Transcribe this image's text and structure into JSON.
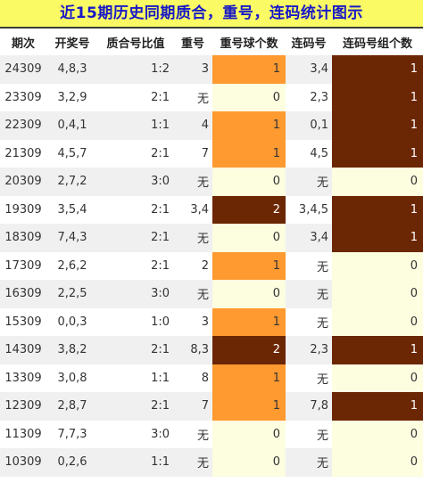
{
  "title": "近15期历史同期质合，重号，连码统计图示",
  "headers": [
    "期次",
    "开奖号",
    "质合号比值",
    "重号",
    "重号球个数",
    "连码号",
    "连码号组个数"
  ],
  "rows": [
    {
      "issue": "24309",
      "numbers": "4,8,3",
      "ratio": "1:2",
      "repeat": "3",
      "repeat_count": "1",
      "consec": "3,4",
      "consec_count": "1"
    },
    {
      "issue": "23309",
      "numbers": "3,2,9",
      "ratio": "2:1",
      "repeat": "无",
      "repeat_count": "0",
      "consec": "2,3",
      "consec_count": "1"
    },
    {
      "issue": "22309",
      "numbers": "0,4,1",
      "ratio": "1:1",
      "repeat": "4",
      "repeat_count": "1",
      "consec": "0,1",
      "consec_count": "1"
    },
    {
      "issue": "21309",
      "numbers": "4,5,7",
      "ratio": "2:1",
      "repeat": "7",
      "repeat_count": "1",
      "consec": "4,5",
      "consec_count": "1"
    },
    {
      "issue": "20309",
      "numbers": "2,7,2",
      "ratio": "3:0",
      "repeat": "无",
      "repeat_count": "0",
      "consec": "无",
      "consec_count": "0"
    },
    {
      "issue": "19309",
      "numbers": "3,5,4",
      "ratio": "2:1",
      "repeat": "3,4",
      "repeat_count": "2",
      "consec": "3,4,5",
      "consec_count": "1"
    },
    {
      "issue": "18309",
      "numbers": "7,4,3",
      "ratio": "2:1",
      "repeat": "无",
      "repeat_count": "0",
      "consec": "3,4",
      "consec_count": "1"
    },
    {
      "issue": "17309",
      "numbers": "2,6,2",
      "ratio": "2:1",
      "repeat": "2",
      "repeat_count": "1",
      "consec": "无",
      "consec_count": "0"
    },
    {
      "issue": "16309",
      "numbers": "2,2,5",
      "ratio": "3:0",
      "repeat": "无",
      "repeat_count": "0",
      "consec": "无",
      "consec_count": "0"
    },
    {
      "issue": "15309",
      "numbers": "0,0,3",
      "ratio": "1:0",
      "repeat": "3",
      "repeat_count": "1",
      "consec": "无",
      "consec_count": "0"
    },
    {
      "issue": "14309",
      "numbers": "3,8,2",
      "ratio": "2:1",
      "repeat": "8,3",
      "repeat_count": "2",
      "consec": "2,3",
      "consec_count": "1"
    },
    {
      "issue": "13309",
      "numbers": "3,0,8",
      "ratio": "1:1",
      "repeat": "8",
      "repeat_count": "1",
      "consec": "无",
      "consec_count": "0"
    },
    {
      "issue": "12309",
      "numbers": "2,8,7",
      "ratio": "2:1",
      "repeat": "7",
      "repeat_count": "1",
      "consec": "7,8",
      "consec_count": "1"
    },
    {
      "issue": "11309",
      "numbers": "7,7,3",
      "ratio": "3:0",
      "repeat": "无",
      "repeat_count": "0",
      "consec": "无",
      "consec_count": "0"
    },
    {
      "issue": "10309",
      "numbers": "0,2,6",
      "ratio": "1:1",
      "repeat": "无",
      "repeat_count": "0",
      "consec": "无",
      "consec_count": "0"
    }
  ],
  "colors": {
    "title_bg": "#fafa64",
    "title_text": "#1818c8",
    "zero_bg": "#fdfde0",
    "one_repeat_bg": "#ff9a30",
    "dark_bg": "#6b2603"
  }
}
